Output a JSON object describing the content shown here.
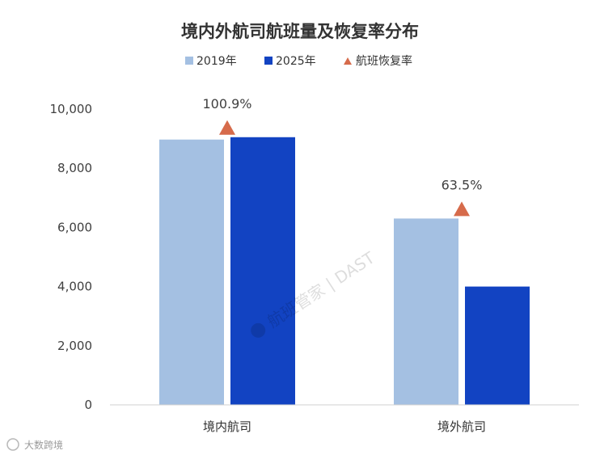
{
  "chart_data": {
    "type": "bar",
    "title": "境内外航司航班量及恢复率分布",
    "categories": [
      "境内航司",
      "境外航司"
    ],
    "series": [
      {
        "name": "2019年",
        "values": [
          8970,
          6300
        ],
        "color": "#a4c0e2"
      },
      {
        "name": "2025年",
        "values": [
          9050,
          4000
        ],
        "color": "#1243c2"
      }
    ],
    "recovery": {
      "name": "航班恢复率",
      "values": [
        "100.9%",
        "63.5%"
      ],
      "color": "#d66b4b"
    },
    "ylim": [
      0,
      10000
    ],
    "yticks": [
      "0",
      "2,000",
      "4,000",
      "6,000",
      "8,000",
      "10,000"
    ],
    "grid": false,
    "legend": "top"
  },
  "watermark": "航班管家 | DAST",
  "source": "大数跨境"
}
